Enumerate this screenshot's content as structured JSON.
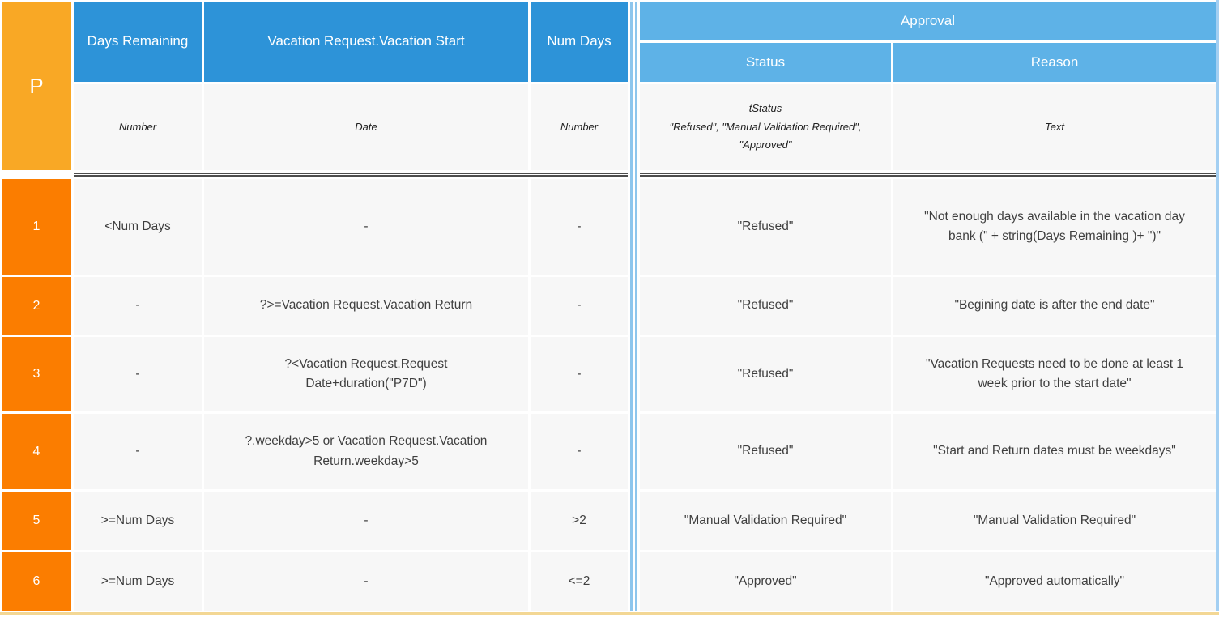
{
  "colors": {
    "header_blue": "#2d93d8",
    "subheader_blue": "#5eb2e7",
    "priority_amber": "#f9a825",
    "row_number_orange": "#fb7d00",
    "cell_background": "#f7f7f7",
    "dark_separator": "#4d4d4d",
    "blue_separator": "#8ec6ed",
    "right_edge_blue": "#a3cff2",
    "bottom_edge_gold": "#f3d794"
  },
  "table": {
    "priority_header": "P",
    "condition_columns": [
      {
        "label": "Days Remaining",
        "datatype": "Number"
      },
      {
        "label": "Vacation Request.Vacation Start",
        "datatype": "Date"
      },
      {
        "label": "Num Days",
        "datatype": "Number"
      }
    ],
    "action_group_label": "Approval",
    "action_columns": [
      {
        "label": "Status",
        "datatype_lines": [
          "tStatus",
          "\"Refused\", \"Manual Validation Required\",",
          "\"Approved\""
        ]
      },
      {
        "label": "Reason",
        "datatype": "Text"
      }
    ],
    "rules": [
      {
        "num": "1",
        "days_remaining": "<Num Days",
        "vacation_start": "-",
        "num_days": "-",
        "status": "\"Refused\"",
        "reason": "\"Not enough days available in the vacation day bank (\"  + string(Days Remaining )+ \")\""
      },
      {
        "num": "2",
        "days_remaining": "-",
        "vacation_start": "?>=Vacation Request.Vacation Return",
        "num_days": "-",
        "status": "\"Refused\"",
        "reason": "\"Begining date is after the end date\""
      },
      {
        "num": "3",
        "days_remaining": "-",
        "vacation_start": "?<Vacation Request.Request Date+duration(\"P7D\")",
        "num_days": "-",
        "status": "\"Refused\"",
        "reason": "\"Vacation Requests need to be done at least 1 week prior to the start date\""
      },
      {
        "num": "4",
        "days_remaining": "-",
        "vacation_start": "?.weekday>5 or Vacation Request.Vacation Return.weekday>5",
        "num_days": "-",
        "status": "\"Refused\"",
        "reason": "\"Start and Return dates must be weekdays\""
      },
      {
        "num": "5",
        "days_remaining": ">=Num Days",
        "vacation_start": "-",
        "num_days": ">2",
        "status": "\"Manual Validation Required\"",
        "reason": "\"Manual Validation Required\""
      },
      {
        "num": "6",
        "days_remaining": ">=Num Days",
        "vacation_start": "-",
        "num_days": "<=2",
        "status": "\"Approved\"",
        "reason": "\"Approved automatically\""
      }
    ]
  }
}
